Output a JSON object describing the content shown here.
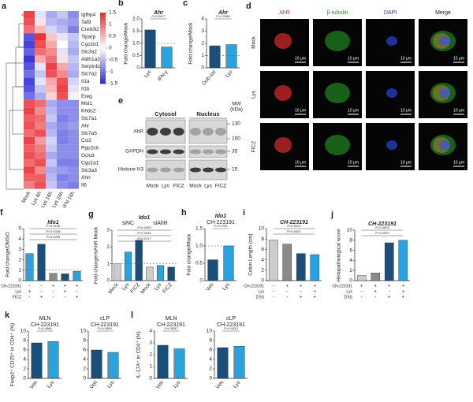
{
  "a": {
    "label": "a",
    "columns": [
      "Mock",
      "Lys 6h",
      "Lys 16h",
      "Lys 24h",
      "IFN 16h"
    ],
    "rows": [
      "Igfbp4",
      "Taf9",
      "Creb3l2",
      "Tiparp",
      "Cyp1b1",
      "Slc3a2",
      "Aldh1a3",
      "Serpinb2",
      "Slc7a2",
      "Il1a",
      "Il1b",
      "Ereg",
      "Mid1",
      "Khdc2",
      "Slc7a1",
      "Ahr",
      "Slc7a5",
      "Ccl2",
      "Ppp2cb",
      "Gclcd",
      "Cyp1a1",
      "Slc3a3",
      "Ahrr",
      "Il6"
    ],
    "values": [
      [
        1.3,
        -0.2,
        -0.6,
        -0.4,
        -0.8
      ],
      [
        1.2,
        0.2,
        -0.5,
        -0.6,
        -0.7
      ],
      [
        1.0,
        0.5,
        -0.3,
        -0.5,
        -0.9
      ],
      [
        -1.2,
        1.4,
        0.4,
        -0.2,
        -0.4
      ],
      [
        -1.3,
        1.2,
        0.6,
        0.0,
        -0.5
      ],
      [
        -1.1,
        1.0,
        0.8,
        -0.2,
        -0.6
      ],
      [
        -1.4,
        0.6,
        1.0,
        0.2,
        -0.4
      ],
      [
        -1.2,
        -0.2,
        1.3,
        0.6,
        -0.5
      ],
      [
        -1.0,
        -0.4,
        1.2,
        0.8,
        -0.6
      ],
      [
        -1.3,
        -0.2,
        0.6,
        1.2,
        -0.3
      ],
      [
        -1.2,
        -0.4,
        0.5,
        1.3,
        -0.2
      ],
      [
        -1.0,
        -0.6,
        0.3,
        1.2,
        0.1
      ],
      [
        1.2,
        1.0,
        -0.6,
        -0.8,
        -0.8
      ],
      [
        1.3,
        0.8,
        -0.5,
        -0.8,
        -0.8
      ],
      [
        1.1,
        1.0,
        -0.4,
        -0.9,
        -0.8
      ],
      [
        1.2,
        0.9,
        -0.6,
        -0.8,
        -0.7
      ],
      [
        1.0,
        1.2,
        -0.5,
        -0.9,
        -0.8
      ],
      [
        1.3,
        0.7,
        -0.3,
        -0.9,
        -0.8
      ],
      [
        1.1,
        0.9,
        -0.4,
        -0.8,
        -0.8
      ],
      [
        1.2,
        1.0,
        -0.6,
        -0.8,
        -0.8
      ],
      [
        1.0,
        1.2,
        -0.4,
        -0.9,
        -0.9
      ],
      [
        1.3,
        0.8,
        -0.6,
        -0.7,
        -0.8
      ],
      [
        1.1,
        1.1,
        -0.5,
        -0.9,
        -0.8
      ],
      [
        0.9,
        1.2,
        -0.4,
        -0.8,
        -0.9
      ]
    ],
    "clim": [
      -1.5,
      1.5
    ],
    "colorbar_ticks": [
      1.5,
      1,
      0.5,
      0,
      -0.5,
      -1,
      -1.5
    ],
    "low_color": "#2a2ad8",
    "high_color": "#e8262a"
  },
  "d": {
    "label": "d",
    "channels": [
      "AhR",
      "β-tubulin",
      "DAPI",
      "Merge"
    ],
    "channel_colors": [
      "#e02020",
      "#1a9a1a",
      "#2030d0",
      "#111111"
    ],
    "rows": [
      "Mock",
      "Lys",
      "FICZ"
    ],
    "scale_bar": "10 μm"
  },
  "e": {
    "label": "e",
    "compartments": [
      "Cytosol",
      "Nucleus"
    ],
    "mw_title": [
      "MW",
      "(kDa)"
    ],
    "proteins": [
      "AhR",
      "GAPDH",
      "Histone H3"
    ],
    "mw": [
      130,
      100,
      35,
      15
    ],
    "lanes": [
      "Mock",
      "Lys",
      "FICZ"
    ]
  },
  "charts": [
    {
      "label": "b",
      "titles": [
        "Ahr"
      ],
      "ylabel": "Fold change/Mock",
      "categories": [
        "Lys",
        "IFN-γ"
      ],
      "rotate": true,
      "values": [
        1.55,
        0.85
      ],
      "colors": [
        "#1b4f7a",
        "#29a3dd"
      ],
      "ylim": [
        0,
        2
      ],
      "yticks": [
        0,
        0.5,
        {
          "value": 1,
          "label": "1.0"
        },
        1.5,
        {
          "value": 2,
          "label": "2.0"
        }
      ],
      "refline": 1,
      "pvalues": [
        "P=0.0017"
      ]
    },
    {
      "label": "c",
      "titles": [
        "Ahr"
      ],
      "ylabel": "Fold change/Mock",
      "categories": [
        "Dob-sst",
        "Lys"
      ],
      "rotate": true,
      "values": [
        1.8,
        1.9
      ],
      "colors": [
        "#1b4f7a",
        "#29a3dd"
      ],
      "ylim": [
        0,
        4
      ],
      "yticks": [
        0,
        1,
        2,
        3,
        4
      ],
      "refline": 1,
      "pvalues": [
        "P=0.7666"
      ]
    },
    {
      "label": "f",
      "titles": [
        "Ido1"
      ],
      "ylabel": "Fold change/DMSO",
      "values": [
        2.6,
        3.5,
        0.7,
        0.65,
        0.9
      ],
      "colors": [
        "#29a3dd",
        "#1b4f7a",
        "#8a8a8a",
        "#1b4f7a",
        "#29a3dd"
      ],
      "ylim": [
        0,
        5
      ],
      "yticks": [
        0,
        1,
        2,
        3,
        4,
        5
      ],
      "refline": 1,
      "pvalues": [
        "P=0.0150",
        "P=0.0028",
        "P=0.0099"
      ],
      "conditions": [
        {
          "name": "CH-223191",
          "marks": [
            "-",
            "-",
            "+",
            "+",
            "+"
          ]
        },
        {
          "name": "Lys",
          "marks": [
            "+",
            "-",
            "-",
            "+",
            "-"
          ]
        },
        {
          "name": "FICZ",
          "marks": [
            "-",
            "+",
            "-",
            "-",
            "+"
          ]
        }
      ]
    },
    {
      "label": "g",
      "titles": [
        "Ido1"
      ],
      "groups": [
        "siNC",
        "siAhR"
      ],
      "ylabel": "Fold change/siAhR Mock",
      "categories": [
        "Mock",
        "Lys",
        "FICZ",
        "Mock",
        "Lys",
        "FICZ"
      ],
      "rotate": true,
      "values": [
        1.0,
        1.7,
        2.4,
        0.8,
        0.9,
        0.8
      ],
      "colors": [
        "#cccccc",
        "#29a3dd",
        "#1b4f7a",
        "#cccccc",
        "#29a3dd",
        "#1b4f7a"
      ],
      "ylim": [
        0,
        3
      ],
      "yticks": [
        0,
        1,
        2,
        3
      ],
      "refline": 1,
      "pvalues": [
        "P=0.0009",
        "P=0.0034",
        "P=0.0117"
      ]
    },
    {
      "label": "h",
      "titles": [
        "Ido1",
        "CH-223191"
      ],
      "ylabel": "Fold change/Mock",
      "categories": [
        "Veh",
        "Lys"
      ],
      "rotate": true,
      "values": [
        0.6,
        1.0
      ],
      "colors": [
        "#1b4f7a",
        "#29a3dd"
      ],
      "ylim": [
        0,
        1.5
      ],
      "yticks": [
        0,
        0.5,
        {
          "value": 1,
          "label": "1.0"
        },
        1.5
      ],
      "refline": 1,
      "pvalues": [
        "P=0.1751"
      ]
    },
    {
      "label": "i",
      "titles": [
        "CH-223191"
      ],
      "ylabel": "Colon Length (cm)",
      "values": [
        7.8,
        7.0,
        5.2,
        5.0
      ],
      "colors": [
        "#cccccc",
        "#8a8a8a",
        "#1b4f7a",
        "#29a3dd"
      ],
      "ylim": [
        0,
        10
      ],
      "yticks": [
        0,
        2,
        4,
        6,
        8,
        10
      ],
      "pvalues": [
        "P=0.0012",
        "P<0.0001"
      ],
      "conditions": [
        {
          "name": "CH-223191",
          "marks": [
            "-",
            "+",
            "+",
            "+"
          ]
        },
        {
          "name": "Lys",
          "marks": [
            "-",
            "-",
            "-",
            "+"
          ]
        },
        {
          "name": "DSS",
          "marks": [
            "-",
            "-",
            "+",
            "+"
          ]
        }
      ]
    },
    {
      "label": "j",
      "titles": [
        "CH-223191"
      ],
      "ylabel": "Histopathological score",
      "values": [
        1.0,
        1.5,
        7.5,
        8.0
      ],
      "colors": [
        "#cccccc",
        "#8a8a8a",
        "#1b4f7a",
        "#29a3dd"
      ],
      "ylim": [
        0,
        10
      ],
      "yticks": [
        0,
        2,
        4,
        6,
        8,
        10
      ],
      "pvalues": [
        "P=0.4803",
        "P=0.0870"
      ],
      "conditions": [
        {
          "name": "CH-223191",
          "marks": [
            "+",
            "+",
            "+",
            "+"
          ]
        },
        {
          "name": "Lys",
          "marks": [
            "-",
            "+",
            "-",
            "+"
          ]
        },
        {
          "name": "DSS",
          "marks": [
            "-",
            "-",
            "+",
            "+"
          ]
        }
      ]
    },
    {
      "label": "k",
      "titles": [
        "MLN",
        "CH-223191"
      ],
      "ylabel": "Foxp3⁺ CD25⁺ in CD4⁺ (%)",
      "categories": [
        "Veh",
        "Lys"
      ],
      "rotate": true,
      "values": [
        7.5,
        7.8
      ],
      "colors": [
        "#1b4f7a",
        "#29a3dd"
      ],
      "ylim": [
        0,
        10
      ],
      "yticks": [
        0,
        2,
        4,
        6,
        8,
        10
      ],
      "pvalues": [
        "P=0.4566"
      ]
    },
    {
      "titles": [
        "cLP",
        "CH-223191"
      ],
      "categories": [
        "Veh",
        "Lys"
      ],
      "rotate": true,
      "values": [
        6.0,
        5.5
      ],
      "colors": [
        "#1b4f7a",
        "#29a3dd"
      ],
      "ylim": [
        0,
        10
      ],
      "yticks": [
        0,
        2,
        4,
        6,
        8,
        10
      ],
      "pvalues": [
        "P=0.6399"
      ]
    },
    {
      "label": "l",
      "titles": [
        "MLN",
        "CH-223191"
      ],
      "ylabel": "IL-17A⁺ in CD4⁺ (%)",
      "categories": [
        "Veh",
        "Lys"
      ],
      "rotate": true,
      "values": [
        2.8,
        2.5
      ],
      "colors": [
        "#1b4f7a",
        "#29a3dd"
      ],
      "ylim": [
        0,
        4
      ],
      "yticks": [
        0,
        1,
        2,
        3,
        4
      ],
      "pvalues": [
        "P=0.5287"
      ]
    },
    {
      "titles": [
        "cLP",
        "CH-223191"
      ],
      "categories": [
        "Veh",
        "Lys"
      ],
      "rotate": true,
      "values": [
        6.5,
        6.8
      ],
      "colors": [
        "#1b4f7a",
        "#29a3dd"
      ],
      "ylim": [
        0,
        10
      ],
      "yticks": [
        0,
        2,
        4,
        6,
        8,
        10
      ],
      "pvalues": [
        "P=0.4433"
      ]
    }
  ]
}
